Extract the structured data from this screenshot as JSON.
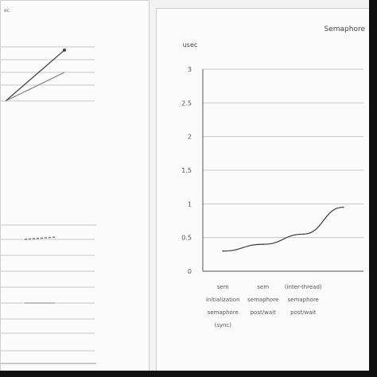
{
  "left_panel": {
    "header": "ec"
  },
  "chart_data": {
    "type": "line",
    "title": "Semaphore",
    "ylabel": "usec",
    "y_ticks": [
      "3",
      "2.5",
      "2",
      "1.5",
      "1",
      "0.5",
      "0"
    ],
    "ylim": [
      0,
      3
    ],
    "categories": [
      [
        "sem",
        "initialization",
        "semaphore",
        "(sync)"
      ],
      [
        "sem",
        "semaphore",
        "post/wait"
      ],
      [
        "(inter-thread)",
        "semaphore",
        "post/wait"
      ],
      [
        ""
      ]
    ],
    "series": [
      {
        "values": [
          0.3,
          0.4,
          0.55,
          0.95
        ],
        "color": "#3a3a3a"
      }
    ],
    "grid": true,
    "legend": "none"
  },
  "colors": {
    "axis": "#555555",
    "grid": "#c8c8c8",
    "line": "#3a3a3a",
    "panel": "#fbfbfb"
  }
}
